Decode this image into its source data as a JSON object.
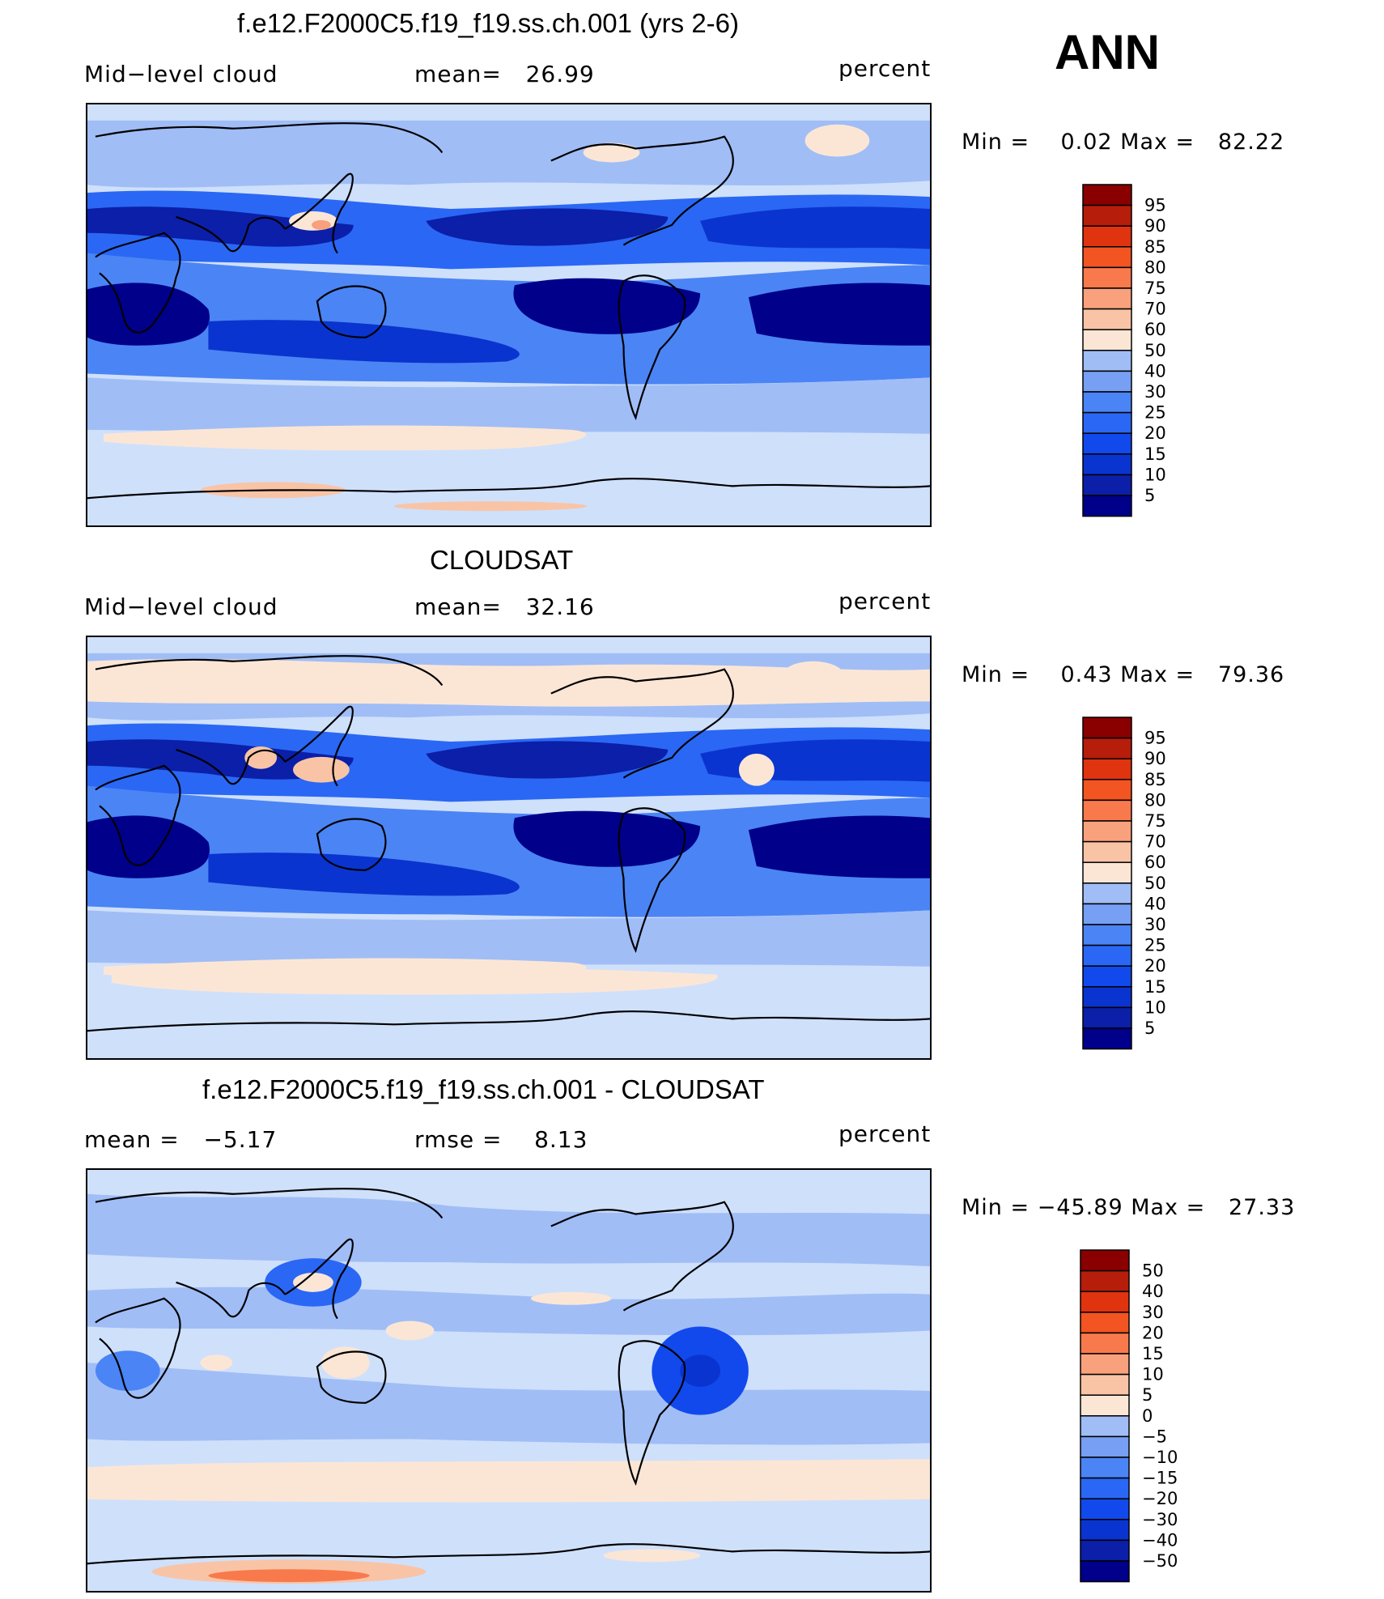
{
  "season": "ANN",
  "colors": {
    "blue_scale": [
      "#00008a",
      "#0b1fa8",
      "#0a34cf",
      "#1149ec",
      "#2a67f4",
      "#4b84f4",
      "#779ff4",
      "#a0bdf6",
      "#cfe0fb",
      "#fbe6d6",
      "#f9c4a6",
      "#f8a17c",
      "#f87a4c",
      "#f25422",
      "#e0330f",
      "#b61d0a",
      "#8a0000"
    ],
    "coast": "#000000"
  },
  "panels": [
    {
      "title": "f.e12.F2000C5.f19_f19.ss.ch.001 (yrs 2-6)",
      "left_label": "Mid−level cloud",
      "center_label": "mean=   26.99",
      "units": "percent",
      "minmax": "Min =    0.02 Max =   82.22",
      "colorbar_levels": [
        "95",
        "90",
        "85",
        "80",
        "75",
        "70",
        "60",
        "50",
        "40",
        "30",
        "25",
        "20",
        "15",
        "10",
        "5"
      ],
      "pattern": "model"
    },
    {
      "title": "CLOUDSAT",
      "left_label": "Mid−level cloud",
      "center_label": "mean=   32.16",
      "units": "percent",
      "minmax": "Min =    0.43 Max =   79.36",
      "colorbar_levels": [
        "95",
        "90",
        "85",
        "80",
        "75",
        "70",
        "60",
        "50",
        "40",
        "30",
        "25",
        "20",
        "15",
        "10",
        "5"
      ],
      "pattern": "obs"
    },
    {
      "title": "f.e12.F2000C5.f19_f19.ss.ch.001 - CLOUDSAT",
      "left_label": "mean =   −5.17",
      "center_label": "rmse =    8.13",
      "units": "percent",
      "minmax": "Min = −45.89 Max =   27.33",
      "colorbar_levels": [
        "50",
        "40",
        "30",
        "20",
        "15",
        "10",
        "5",
        "0",
        "−5",
        "−10",
        "−15",
        "−20",
        "−30",
        "−40",
        "−50"
      ],
      "pattern": "diff"
    }
  ],
  "chart_data": [
    {
      "type": "heatmap",
      "title": "f.e12.F2000C5.f19_f19.ss.ch.001 (yrs 2-6)",
      "variable": "Mid−level cloud",
      "units": "percent",
      "mean": 26.99,
      "min": 0.02,
      "max": 82.22,
      "contour_levels": [
        5,
        10,
        15,
        20,
        25,
        30,
        40,
        50,
        60,
        70,
        75,
        80,
        85,
        90,
        95
      ]
    },
    {
      "type": "heatmap",
      "title": "CLOUDSAT",
      "variable": "Mid−level cloud",
      "units": "percent",
      "mean": 32.16,
      "min": 0.43,
      "max": 79.36,
      "contour_levels": [
        5,
        10,
        15,
        20,
        25,
        30,
        40,
        50,
        60,
        70,
        75,
        80,
        85,
        90,
        95
      ]
    },
    {
      "type": "heatmap",
      "title": "f.e12.F2000C5.f19_f19.ss.ch.001 - CLOUDSAT",
      "units": "percent",
      "mean": -5.17,
      "rmse": 8.13,
      "min": -45.89,
      "max": 27.33,
      "contour_levels": [
        -50,
        -40,
        -30,
        -20,
        -15,
        -10,
        -5,
        0,
        5,
        10,
        15,
        20,
        30,
        40,
        50
      ]
    }
  ]
}
